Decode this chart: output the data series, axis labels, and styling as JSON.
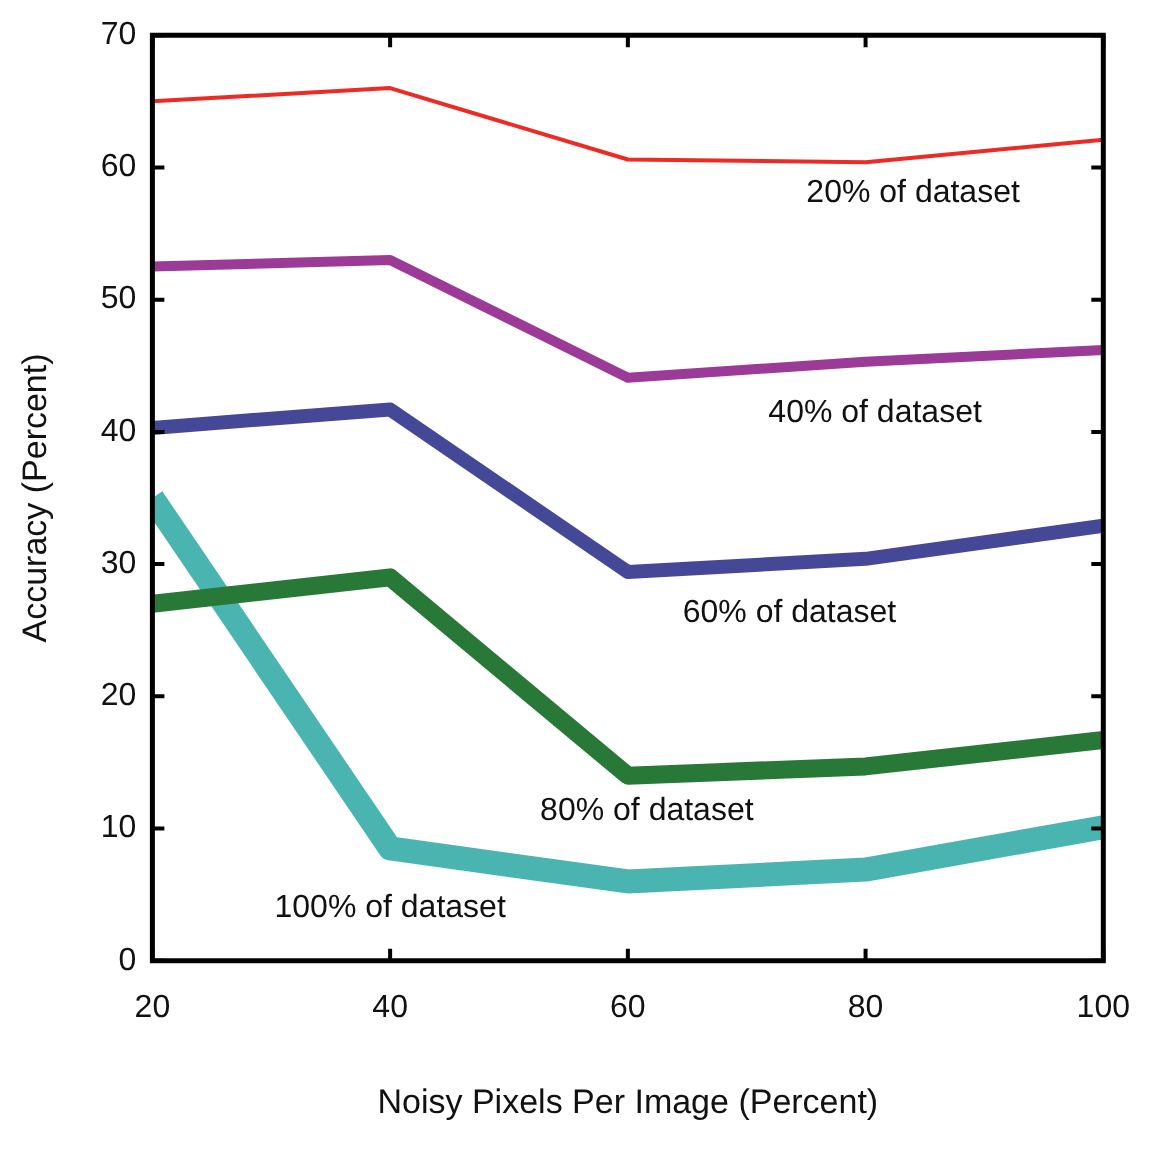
{
  "chart_data": {
    "type": "line",
    "xlabel": "Noisy Pixels Per Image (Percent)",
    "ylabel": "Accuracy (Percent)",
    "x": [
      20,
      40,
      60,
      80,
      100
    ],
    "xlim": [
      20,
      100
    ],
    "xticks": [
      20,
      40,
      60,
      80,
      100
    ],
    "ylim": [
      0,
      70
    ],
    "yticks": [
      0,
      10,
      20,
      30,
      40,
      50,
      60,
      70
    ],
    "grid": false,
    "legend": false,
    "marker": "none",
    "line_style": "solid",
    "series": [
      {
        "name": "20% of dataset",
        "color": "#ee2a24",
        "values": [
          65.0,
          66.0,
          60.6,
          60.4,
          62.1
        ]
      },
      {
        "name": "40% of dataset",
        "color": "#9b3a97",
        "values": [
          52.5,
          53.0,
          44.1,
          45.3,
          46.2
        ]
      },
      {
        "name": "60% of dataset",
        "color": "#454896",
        "values": [
          40.3,
          41.7,
          29.4,
          30.4,
          32.9
        ]
      },
      {
        "name": "80% of dataset",
        "color": "#287838",
        "values": [
          27.0,
          29.0,
          14.0,
          14.7,
          16.7
        ]
      },
      {
        "name": "100% of dataset",
        "color": "#4ab5b0",
        "values": [
          35.0,
          8.5,
          6.0,
          6.9,
          10.1
        ]
      }
    ]
  }
}
